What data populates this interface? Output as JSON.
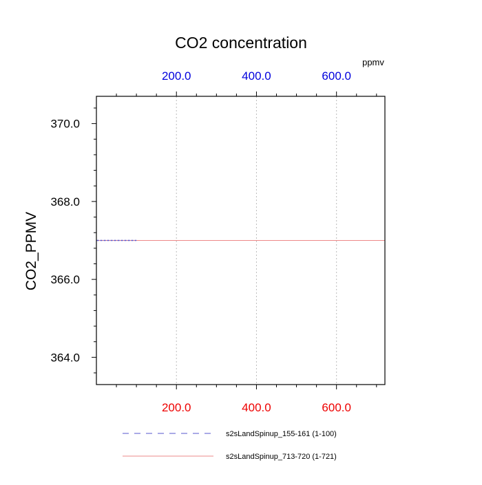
{
  "chart_data": {
    "type": "line",
    "title": "CO2 concentration",
    "ylabel": "CO2_PPMV",
    "top_axis_unit": "ppmv",
    "xlim": [
      0,
      721
    ],
    "ylim": [
      363.3,
      370.7
    ],
    "grid_x_dashed": true,
    "x_ticks": [
      {
        "value": 200,
        "label": "200.0"
      },
      {
        "value": 400,
        "label": "400.0"
      },
      {
        "value": 600,
        "label": "600.0"
      }
    ],
    "y_ticks": [
      {
        "value": 364,
        "label": "364.0"
      },
      {
        "value": 366,
        "label": "366.0"
      },
      {
        "value": 368,
        "label": "368.0"
      },
      {
        "value": 370,
        "label": "370.0"
      }
    ],
    "series": [
      {
        "name": "s2sLandSpinup_155-161 (1-100)",
        "color": "#5555cc",
        "style": "dashed",
        "x": [
          1,
          100
        ],
        "y": [
          367.0,
          367.0
        ]
      },
      {
        "name": "s2sLandSpinup_713-720 (1-721)",
        "color": "#ee8888",
        "style": "solid",
        "x": [
          1,
          721
        ],
        "y": [
          367.0,
          367.0
        ]
      }
    ],
    "colors": {
      "top_tick_labels": "#0000dd",
      "bottom_tick_labels": "#ee0000"
    },
    "legend_position": "bottom"
  }
}
